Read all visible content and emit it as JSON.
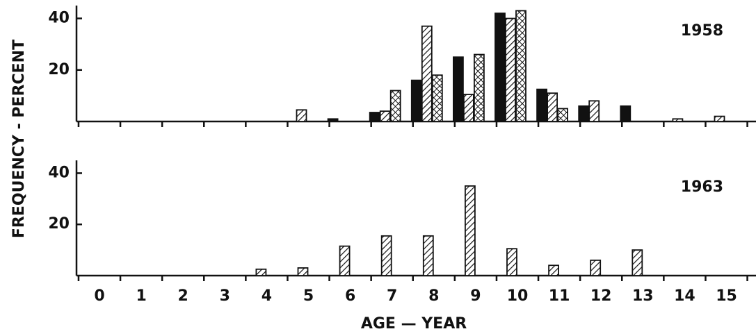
{
  "chart_data": [
    {
      "type": "bar",
      "title": "1958",
      "ylabel": "FREQUENCY - PERCENT",
      "ylim": [
        0,
        45
      ],
      "yticks": [
        20,
        40
      ],
      "series": [
        {
          "color": "#111111",
          "pattern": "solid",
          "values": [
            0,
            0,
            0,
            0,
            0,
            0,
            1,
            3.5,
            16,
            25,
            42,
            12.5,
            6,
            6,
            0,
            0
          ]
        },
        {
          "color": "#111111",
          "pattern": "hatch",
          "values": [
            0,
            0,
            0,
            0,
            0,
            4.5,
            0,
            4,
            37,
            10.5,
            40,
            11,
            8,
            0,
            1,
            2
          ]
        },
        {
          "color": "#111111",
          "pattern": "cross",
          "values": [
            0,
            0,
            0,
            0,
            0,
            0,
            0,
            12,
            18,
            26,
            43,
            5,
            0,
            0,
            0,
            0
          ]
        }
      ]
    },
    {
      "type": "bar",
      "title": "1963",
      "xlabel": "AGE — YEAR",
      "categories": [
        "0",
        "1",
        "2",
        "3",
        "4",
        "5",
        "6",
        "7",
        "8",
        "9",
        "10",
        "11",
        "12",
        "13",
        "14",
        "15"
      ],
      "ylim": [
        0,
        45
      ],
      "yticks": [
        20,
        40
      ],
      "series": [
        {
          "color": "#111111",
          "pattern": "hatch",
          "values": [
            0,
            0,
            0,
            0,
            2.5,
            3,
            11.5,
            15.5,
            15.5,
            35,
            10.5,
            4,
            6,
            10,
            0,
            0
          ]
        }
      ]
    }
  ]
}
